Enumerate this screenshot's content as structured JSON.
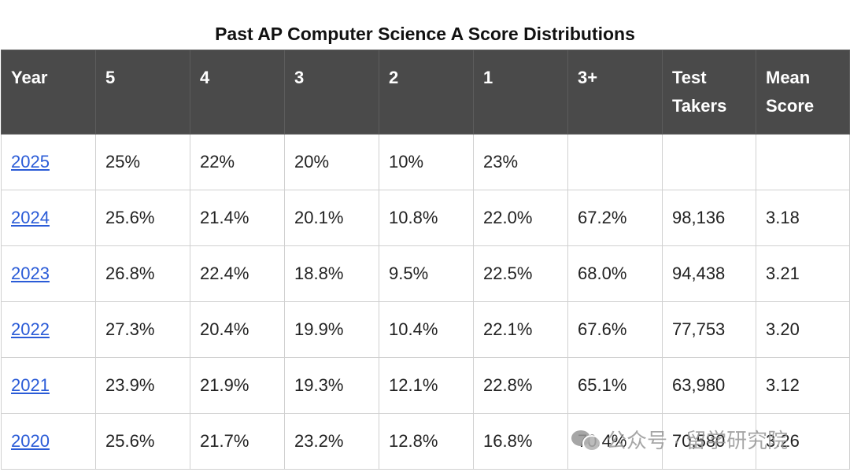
{
  "title": "Past AP Computer Science A Score Distributions",
  "table": {
    "headers": [
      "Year",
      "5",
      "4",
      "3",
      "2",
      "1",
      "3+",
      "Test Takers",
      "Mean Score"
    ],
    "rows": [
      [
        "2025",
        "25%",
        "22%",
        "20%",
        "10%",
        "23%",
        "",
        "",
        ""
      ],
      [
        "2024",
        "25.6%",
        "21.4%",
        "20.1%",
        "10.8%",
        "22.0%",
        "67.2%",
        "98,136",
        "3.18"
      ],
      [
        "2023",
        "26.8%",
        "22.4%",
        "18.8%",
        "9.5%",
        "22.5%",
        "68.0%",
        "94,438",
        "3.21"
      ],
      [
        "2022",
        "27.3%",
        "20.4%",
        "19.9%",
        "10.4%",
        "22.1%",
        "67.6%",
        "77,753",
        "3.20"
      ],
      [
        "2021",
        "23.9%",
        "21.9%",
        "19.3%",
        "12.1%",
        "22.8%",
        "65.1%",
        "63,980",
        "3.12"
      ],
      [
        "2020",
        "25.6%",
        "21.7%",
        "23.2%",
        "12.8%",
        "16.8%",
        "70.4%",
        "70,580",
        "3.26"
      ]
    ]
  },
  "watermark": {
    "text": "公众号 · 留学研究院",
    "icon": "wechat-icon"
  },
  "colors": {
    "header_bg": "#4a4a4a",
    "link": "#2a5bd7",
    "border": "#d0d0d0"
  }
}
